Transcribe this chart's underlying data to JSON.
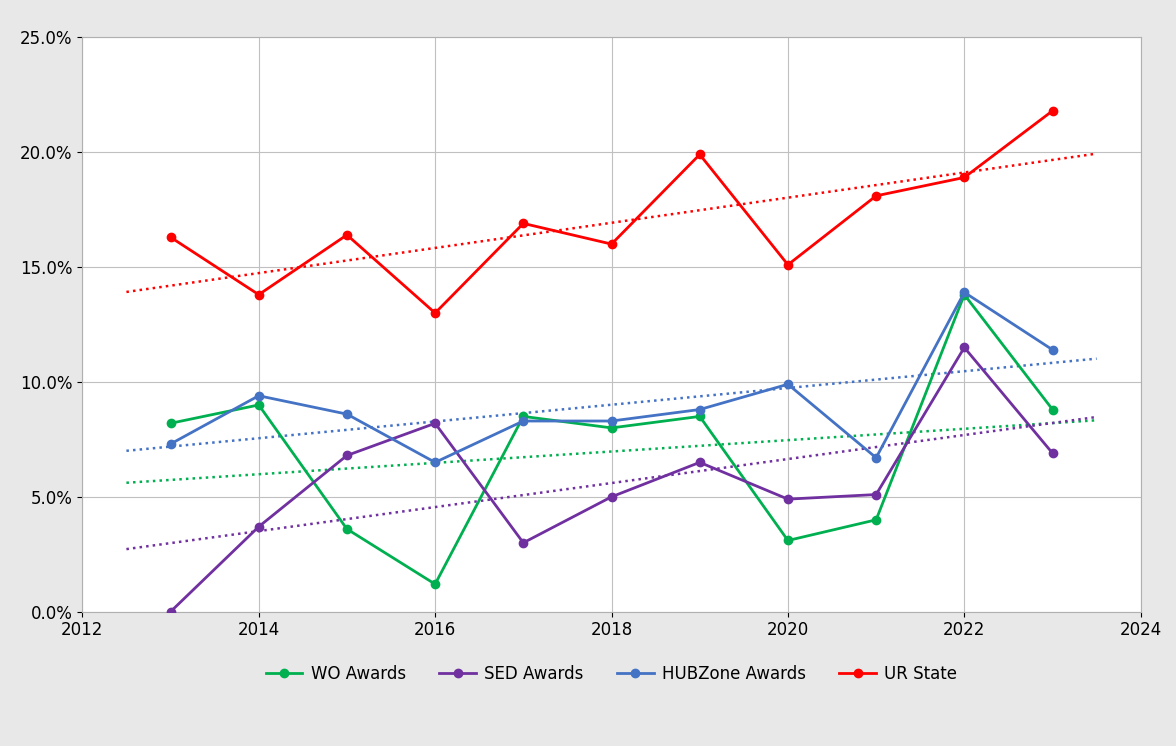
{
  "years": [
    2013,
    2014,
    2015,
    2016,
    2017,
    2018,
    2019,
    2020,
    2021,
    2022,
    2023
  ],
  "wo_awards": [
    8.2,
    9.0,
    3.6,
    1.2,
    8.5,
    8.0,
    8.5,
    3.1,
    4.0,
    13.8,
    8.8
  ],
  "sed_awards": [
    0.0,
    3.7,
    6.8,
    8.2,
    3.0,
    5.0,
    6.5,
    4.9,
    5.1,
    11.5,
    6.9
  ],
  "hubzone_awards": [
    7.3,
    9.4,
    8.6,
    6.5,
    8.3,
    8.3,
    8.8,
    9.9,
    6.7,
    13.9,
    11.4
  ],
  "ur_state": [
    16.3,
    13.8,
    16.4,
    13.0,
    16.9,
    16.0,
    19.9,
    15.1,
    18.1,
    18.9,
    21.8
  ],
  "wo_color": "#00b050",
  "sed_color": "#7030a0",
  "hubzone_color": "#4472c4",
  "ur_color": "#ff0000",
  "xlim": [
    2012,
    2024
  ],
  "ylim": [
    0.0,
    0.25
  ],
  "xticks": [
    2012,
    2014,
    2016,
    2018,
    2020,
    2022,
    2024
  ],
  "yticks": [
    0.0,
    0.05,
    0.1,
    0.15,
    0.2,
    0.25
  ],
  "background_color": "#e8e8e8",
  "plot_bg_color": "#ffffff",
  "grid_color": "#c0c0c0",
  "legend_labels": [
    "WO Awards",
    "SED Awards",
    "HUBZone Awards",
    "UR State"
  ],
  "marker": "o",
  "linewidth": 2.0,
  "markersize": 6,
  "tick_fontsize": 12,
  "legend_fontsize": 12
}
